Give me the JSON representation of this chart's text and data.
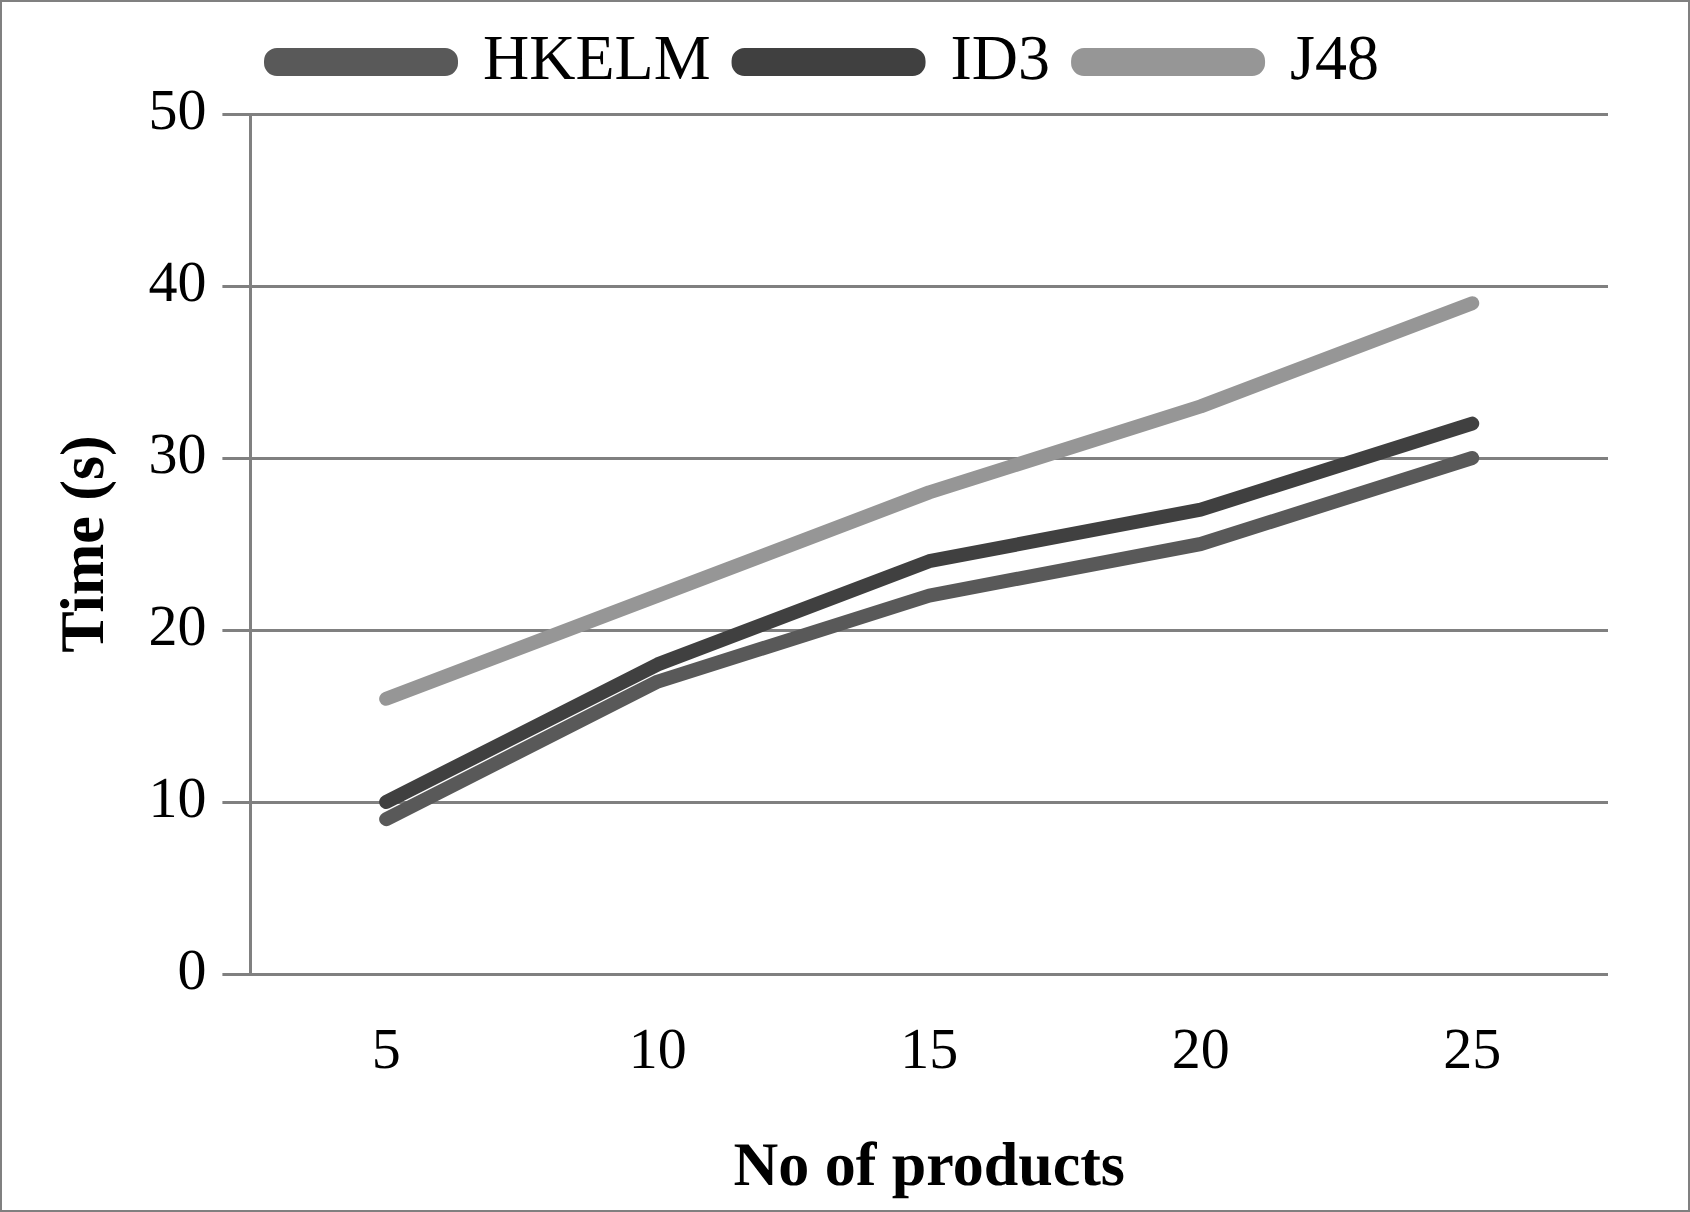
{
  "chart_data": {
    "type": "line",
    "xlabel": "No of products",
    "ylabel": "Time (s)",
    "categories": [
      "5",
      "10",
      "15",
      "20",
      "25"
    ],
    "series": [
      {
        "name": "HKELM",
        "color": "#595959",
        "values": [
          9,
          17,
          22,
          25,
          30
        ]
      },
      {
        "name": "ID3",
        "color": "#404040",
        "values": [
          10,
          18,
          24,
          27,
          32
        ]
      },
      {
        "name": "J48",
        "color": "#969696",
        "values": [
          16,
          22,
          28,
          33,
          39
        ]
      }
    ],
    "ylim": [
      0,
      50
    ],
    "yticks": [
      0,
      10,
      20,
      30,
      40,
      50
    ],
    "grid": "y",
    "legend": "top",
    "marker": "none",
    "line_style": "solid"
  }
}
